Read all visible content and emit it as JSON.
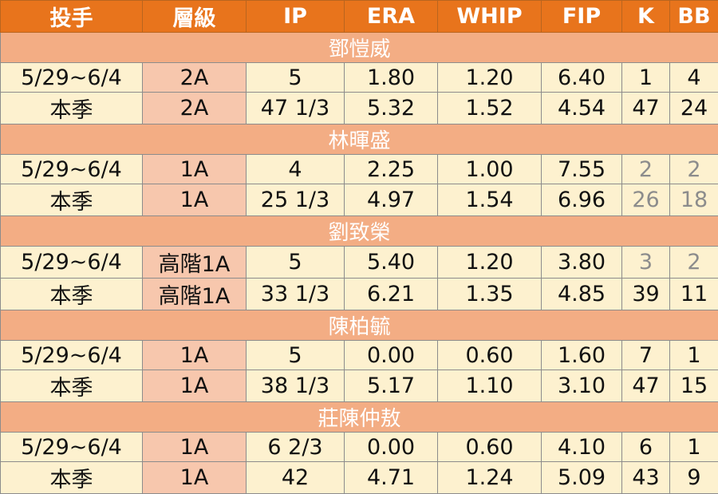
{
  "headers": [
    "投手",
    "層級",
    "IP",
    "ERA",
    "WHIP",
    "FIP",
    "K",
    "BB"
  ],
  "pitchers": [
    {
      "name": "鄧愷威",
      "rows": [
        {
          "period": "5/29~6/4",
          "level": "2A",
          "ip": "5",
          "era": "1.80",
          "whip": "1.20",
          "fip": "6.40",
          "k": "1",
          "bb": "4"
        },
        {
          "period": "本季",
          "level": "2A",
          "ip": "47 1/3",
          "era": "5.32",
          "whip": "1.52",
          "fip": "4.54",
          "k": "47",
          "bb": "24"
        }
      ]
    },
    {
      "name": "林暉盛",
      "rows": [
        {
          "period": "5/29~6/4",
          "level": "1A",
          "ip": "4",
          "era": "2.25",
          "whip": "1.00",
          "fip": "7.55",
          "k": "2",
          "bb": "2"
        },
        {
          "period": "本季",
          "level": "1A",
          "ip": "25 1/3",
          "era": "4.97",
          "whip": "1.54",
          "fip": "6.96",
          "k": "26",
          "bb": "18"
        }
      ]
    },
    {
      "name": "劉致榮",
      "rows": [
        {
          "period": "5/29~6/4",
          "level": "高階1A",
          "ip": "5",
          "era": "5.40",
          "whip": "1.20",
          "fip": "3.80",
          "k": "3",
          "bb": "2"
        },
        {
          "period": "本季",
          "level": "高階1A",
          "ip": "33 1/3",
          "era": "6.21",
          "whip": "1.35",
          "fip": "4.85",
          "k": "39",
          "bb": "11"
        }
      ]
    },
    {
      "name": "陳柏毓",
      "rows": [
        {
          "period": "5/29~6/4",
          "level": "1A",
          "ip": "5",
          "era": "0.00",
          "whip": "0.60",
          "fip": "1.60",
          "k": "7",
          "bb": "1"
        },
        {
          "period": "本季",
          "level": "1A",
          "ip": "38 1/3",
          "era": "5.17",
          "whip": "1.10",
          "fip": "3.10",
          "k": "47",
          "bb": "15"
        }
      ]
    },
    {
      "name": "莊陳仲敖",
      "rows": [
        {
          "period": "5/29~6/4",
          "level": "1A",
          "ip": "6 2/3",
          "era": "0.00",
          "whip": "0.60",
          "fip": "4.10",
          "k": "6",
          "bb": "1"
        },
        {
          "period": "本季",
          "level": "1A",
          "ip": "42",
          "era": "4.71",
          "whip": "1.24",
          "fip": "5.09",
          "k": "43",
          "bb": "9"
        }
      ]
    }
  ],
  "colors": {
    "header_bg": "#e8741c",
    "name_row_bg": "#f3ad84",
    "data_bg": "#fdf1cf",
    "level_bg": "#f7c7ad",
    "muted_text": "#8c8c8c"
  }
}
